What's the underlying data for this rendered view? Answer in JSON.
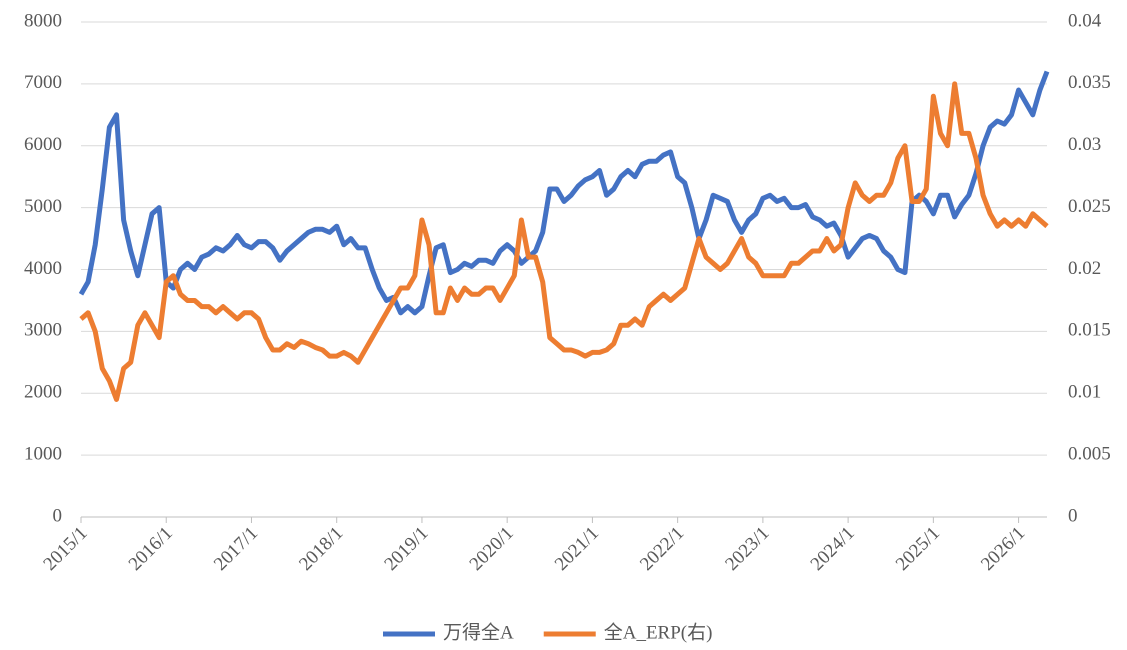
{
  "chart_data": {
    "type": "line",
    "categories": [
      "2015/1",
      null,
      null,
      null,
      null,
      null,
      null,
      null,
      null,
      null,
      null,
      null,
      "2016/1",
      null,
      null,
      null,
      null,
      null,
      null,
      null,
      null,
      null,
      null,
      null,
      "2017/1",
      null,
      null,
      null,
      null,
      null,
      null,
      null,
      null,
      null,
      null,
      null,
      "2018/1",
      null,
      null,
      null,
      null,
      null,
      null,
      null,
      null,
      null,
      null,
      null,
      "2019/1",
      null,
      null,
      null,
      null,
      null,
      null,
      null,
      null,
      null,
      null,
      null,
      "2020/1",
      null,
      null,
      null,
      null,
      null,
      null,
      null,
      null,
      null,
      null,
      null,
      "2021/1",
      null,
      null,
      null,
      null,
      null,
      null,
      null,
      null,
      null,
      null,
      null,
      "2022/1",
      null,
      null,
      null,
      null,
      null,
      null,
      null,
      null,
      null,
      null,
      null,
      "2023/1",
      null,
      null,
      null,
      null,
      null,
      null,
      null,
      null,
      null,
      null,
      null,
      "2024/1",
      null,
      null,
      null,
      null,
      null,
      null,
      null,
      null,
      null,
      null,
      null,
      "2025/1",
      null,
      null,
      null,
      null,
      null,
      null,
      null,
      null,
      null,
      null,
      null,
      "2026/1",
      null,
      null,
      null,
      null
    ],
    "series": [
      {
        "name": "万得全A",
        "color": "#4472c4",
        "values": [
          3600,
          3800,
          4400,
          5300,
          6300,
          6500,
          4800,
          4300,
          3900,
          4400,
          4900,
          5000,
          3800,
          3700,
          4000,
          4100,
          4000,
          4200,
          4250,
          4350,
          4300,
          4400,
          4550,
          4400,
          4350,
          4450,
          4450,
          4350,
          4150,
          4300,
          4400,
          4500,
          4600,
          4650,
          4650,
          4600,
          4700,
          4400,
          4500,
          4350,
          4350,
          4000,
          3700,
          3500,
          3550,
          3300,
          3400,
          3300,
          3400,
          3900,
          4350,
          4400,
          3950,
          4000,
          4100,
          4050,
          4150,
          4150,
          4100,
          4300,
          4400,
          4300,
          4100,
          4200,
          4300,
          4600,
          5300,
          5300,
          5100,
          5200,
          5350,
          5450,
          5500,
          5600,
          5200,
          5300,
          5500,
          5600,
          5500,
          5700,
          5750,
          5750,
          5850,
          5900,
          5500,
          5400,
          5000,
          4500,
          4800,
          5200,
          5150,
          5100,
          4800,
          4600,
          4800,
          4900,
          5150,
          5200,
          5100,
          5150,
          5000,
          5000,
          5050,
          4850,
          4800,
          4700,
          4750,
          4550,
          4200,
          4350,
          4500,
          4550,
          4500,
          4300,
          4200,
          4000,
          3950,
          5100,
          5200,
          5100,
          4900,
          5200,
          5200,
          4850,
          5050,
          5200,
          5550,
          6000,
          6300,
          6400,
          6350,
          6500,
          6900,
          6700,
          6500,
          6900,
          7200
        ]
      },
      {
        "name": "全A_ERP(右)",
        "color": "#ed7d31",
        "axis": "y2",
        "values": [
          0.016,
          0.0165,
          0.015,
          0.012,
          0.011,
          0.0095,
          0.012,
          0.0125,
          0.0155,
          0.0165,
          0.0155,
          0.0145,
          0.019,
          0.0195,
          0.018,
          0.0175,
          0.0175,
          0.017,
          0.017,
          0.0165,
          0.017,
          0.0165,
          0.016,
          0.0165,
          0.0165,
          0.016,
          0.0145,
          0.0135,
          0.0135,
          0.014,
          0.0137,
          0.0142,
          0.014,
          0.0137,
          0.0135,
          0.013,
          0.013,
          0.0133,
          0.013,
          0.0125,
          0.0135,
          0.0145,
          0.0155,
          0.0165,
          0.0175,
          0.0185,
          0.0185,
          0.0195,
          0.024,
          0.022,
          0.0165,
          0.0165,
          0.0185,
          0.0175,
          0.0185,
          0.018,
          0.018,
          0.0185,
          0.0185,
          0.0175,
          0.0185,
          0.0195,
          0.024,
          0.021,
          0.021,
          0.019,
          0.0145,
          0.014,
          0.0135,
          0.0135,
          0.0133,
          0.013,
          0.0133,
          0.0133,
          0.0135,
          0.014,
          0.0155,
          0.0155,
          0.016,
          0.0155,
          0.017,
          0.0175,
          0.018,
          0.0175,
          0.018,
          0.0185,
          0.0205,
          0.0225,
          0.021,
          0.0205,
          0.02,
          0.0205,
          0.0215,
          0.0225,
          0.021,
          0.0205,
          0.0195,
          0.0195,
          0.0195,
          0.0195,
          0.0205,
          0.0205,
          0.021,
          0.0215,
          0.0215,
          0.0225,
          0.0215,
          0.022,
          0.025,
          0.027,
          0.026,
          0.0255,
          0.026,
          0.026,
          0.027,
          0.029,
          0.03,
          0.0255,
          0.0255,
          0.0265,
          0.034,
          0.031,
          0.03,
          0.035,
          0.031,
          0.031,
          0.029,
          0.026,
          0.0245,
          0.0235,
          0.024,
          0.0235,
          0.024,
          0.0235,
          0.0245,
          0.024,
          0.0235
        ]
      }
    ],
    "ylim": [
      0,
      8000
    ],
    "yticks": [
      0,
      1000,
      2000,
      3000,
      4000,
      5000,
      6000,
      7000,
      8000
    ],
    "y2lim": [
      0,
      0.04
    ],
    "y2ticks": [
      0,
      0.005,
      0.01,
      0.015,
      0.02,
      0.025,
      0.03,
      0.035,
      0.04
    ],
    "grid": true,
    "legend": "bottom"
  }
}
